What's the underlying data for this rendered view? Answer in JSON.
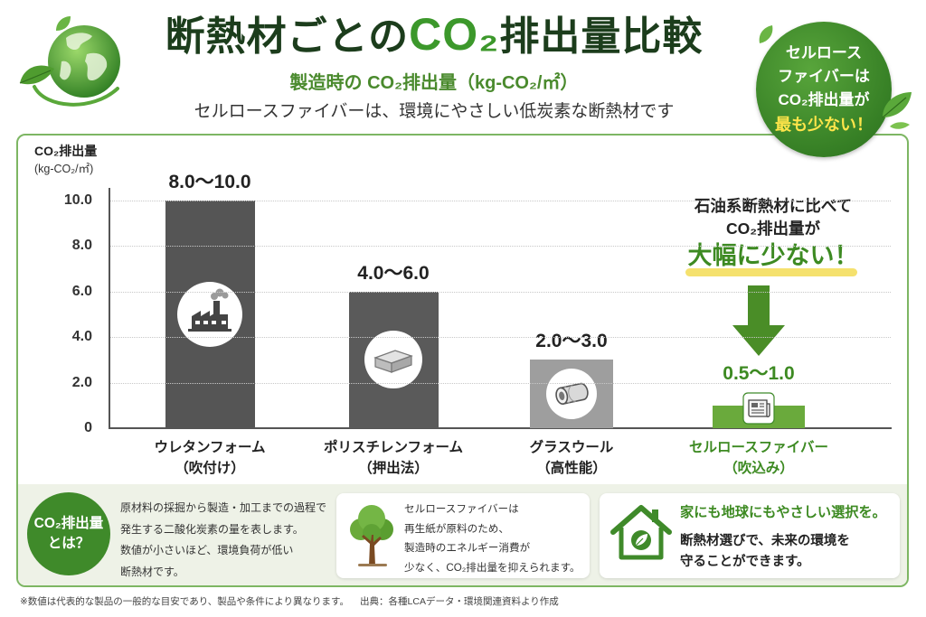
{
  "header": {
    "logo_icon": "globe-leaves-icon",
    "title_pre": "断熱材ごとの",
    "title_co2": "CO₂",
    "title_post": "排出量比較",
    "subtitle": "製造時の CO₂排出量（kg-CO₂/㎡）",
    "tagline": "セルロースファイバーは、環境にやさしい低炭素な断熱材です"
  },
  "badge": {
    "lines": [
      "セルロース",
      "ファイバーは",
      "CO₂排出量が"
    ],
    "highlight": "最も少ない！",
    "icon": "leaf-icon"
  },
  "chart_data": {
    "type": "bar",
    "ylabel": "CO₂排出量",
    "yunit": "(kg-CO₂/㎡)",
    "ylim": [
      0,
      10
    ],
    "yticks": [
      {
        "value": 10,
        "label": "10.0"
      },
      {
        "value": 8,
        "label": "8.0"
      },
      {
        "value": 6,
        "label": "6.0"
      },
      {
        "value": 4,
        "label": "4.0"
      },
      {
        "value": 2,
        "label": "2.0"
      },
      {
        "value": 0,
        "label": "0"
      }
    ],
    "grid": true,
    "categories": [
      "ウレタンフォーム",
      "ポリスチレンフォーム",
      "グラスウール",
      "セルロースファイバー"
    ],
    "category_sublabels": [
      "（吹付け）",
      "（押出法）",
      "（高性能）",
      "（吹込み）"
    ],
    "values": [
      [
        8.0,
        10.0
      ],
      [
        4.0,
        6.0
      ],
      [
        2.0,
        3.0
      ],
      [
        0.5,
        1.0
      ]
    ],
    "value_labels": [
      "8.0～10.0",
      "4.0～6.0",
      "2.0～3.0",
      "0.5～1.0"
    ],
    "bar_colors": [
      "#555555",
      "#5a5a5a",
      "#9e9e9e",
      "#6aaa3c"
    ],
    "bar_icons": [
      "factory-icon",
      "foam-board-icon",
      "glass-wool-roll-icon",
      "newspaper-icon"
    ],
    "annotation": {
      "line1": "石油系断熱材に比べて",
      "line2": "CO₂排出量が",
      "emphasis": "大幅に少ない！",
      "icon": "down-arrow-icon"
    }
  },
  "info": {
    "definition": {
      "badge_line1": "CO₂排出量",
      "badge_line2": "とは？",
      "lines": [
        "原材料の採掘から製造・加工までの過程で",
        "発生する二酸化炭素の量を表します。",
        "数値が小さいほど、環境負荷が低い",
        "断熱材です。"
      ]
    },
    "material": {
      "icon": "tree-icon",
      "lines": [
        "セルロースファイバーは",
        "再生紙が原料のため、",
        "製造時のエネルギー消費が",
        "少なく、CO₂排出量を抑えられます。"
      ]
    },
    "home": {
      "icon": "house-leaf-icon",
      "heading": "家にも地球にもやさしい選択を。",
      "lines": [
        "断熱材選びで、未来の環境を",
        "守ることができます。"
      ]
    }
  },
  "footer": {
    "note": "※数値は代表的な製品の一般的な目安であり、製品や条件により異なります。",
    "source": "出典：各種LCAデータ・環境関連資料より作成"
  },
  "colors": {
    "title": "#1c3d1c",
    "accent": "#3c982b",
    "badge": "#367f25",
    "highlight_yellow": "#ffe54a",
    "panel_border": "#7db663"
  }
}
